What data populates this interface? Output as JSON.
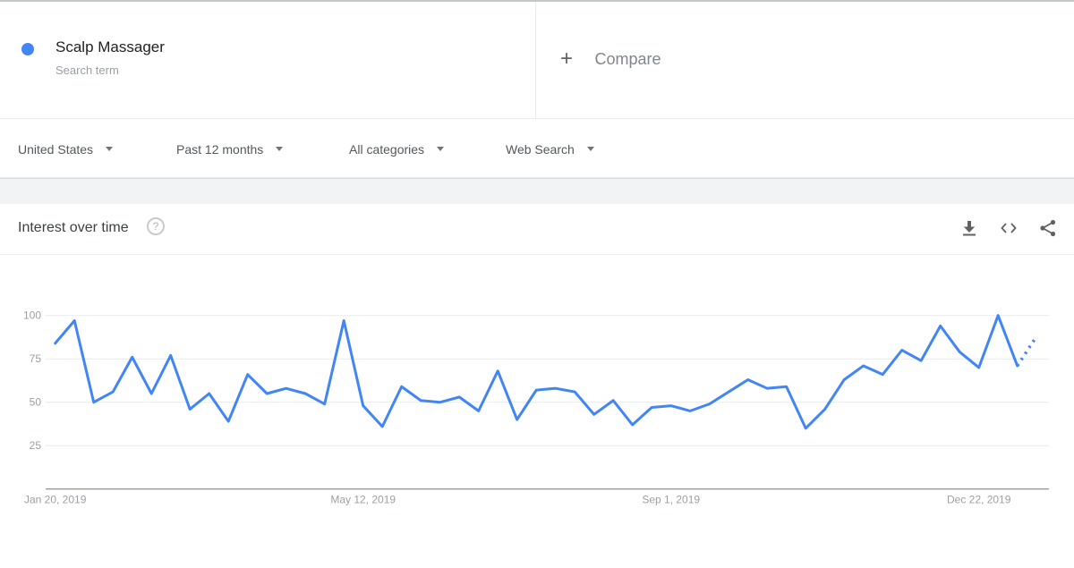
{
  "term_card": {
    "term": "Scalp Massager",
    "type_label": "Search term",
    "dot_color": "#4285f4"
  },
  "compare": {
    "plus_glyph": "+",
    "label": "Compare"
  },
  "filters": [
    {
      "label": "United States"
    },
    {
      "label": "Past 12 months"
    },
    {
      "label": "All categories"
    },
    {
      "label": "Web Search"
    }
  ],
  "panel": {
    "title": "Interest over time",
    "help_glyph": "?",
    "icon_color": "#616161"
  },
  "chart_data": {
    "type": "line",
    "title": "Interest over time",
    "frequency": "weekly",
    "grid": true,
    "ylim": [
      0,
      100
    ],
    "yticks": [
      25,
      50,
      75,
      100
    ],
    "xticks": [
      {
        "index": 0,
        "label": "Jan 20, 2019"
      },
      {
        "index": 16,
        "label": "May 12, 2019"
      },
      {
        "index": 32,
        "label": "Sep 1, 2019"
      },
      {
        "index": 48,
        "label": "Dec 22, 2019"
      }
    ],
    "series": [
      {
        "name": "Scalp Massager",
        "color": "#4285f4",
        "values": [
          84,
          97,
          50,
          56,
          76,
          55,
          77,
          46,
          55,
          39,
          66,
          55,
          58,
          55,
          49,
          97,
          48,
          36,
          59,
          51,
          50,
          53,
          45,
          68,
          40,
          57,
          58,
          56,
          43,
          51,
          37,
          47,
          48,
          45,
          49,
          56,
          63,
          58,
          59,
          35,
          46,
          63,
          71,
          66,
          80,
          74,
          94,
          79,
          70,
          100,
          71
        ]
      }
    ],
    "forecast_tail": {
      "value": 88,
      "style": "dotted"
    },
    "axis_label_color": "#9aa0a6",
    "gridline_color": "#e8eaed",
    "axis_line_color": "#757575"
  }
}
